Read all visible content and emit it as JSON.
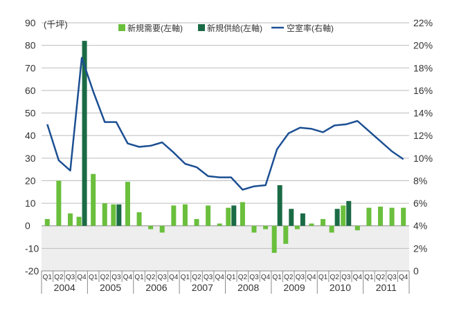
{
  "chart_data": {
    "type": "bar",
    "unit_left": "(千坪)",
    "legend": [
      {
        "name": "新規需要(左軸)",
        "kind": "bar",
        "color": "#6abf3c"
      },
      {
        "name": "新規供給(左軸)",
        "kind": "bar",
        "color": "#1a6b45"
      },
      {
        "name": "空室率(右軸)",
        "kind": "line",
        "color": "#1b4f93"
      }
    ],
    "legend_position": "top",
    "shaded_negative_region_color": "#eeeeee",
    "left_axis": {
      "min": -20,
      "max": 90,
      "ticks": [
        "90",
        "80",
        "70",
        "60",
        "50",
        "40",
        "30",
        "20",
        "10",
        "0",
        "-10",
        "-20"
      ]
    },
    "right_axis": {
      "min": 0,
      "max": 22,
      "ticks": [
        "22%",
        "20%",
        "18%",
        "16%",
        "14%",
        "12%",
        "10%",
        "8%",
        "6%",
        "4%",
        "2%",
        "0"
      ]
    },
    "quarters": [
      "Q1",
      "Q2",
      "Q3",
      "Q4",
      "Q1",
      "Q2",
      "Q3",
      "Q4",
      "Q1",
      "Q2",
      "Q3",
      "Q4",
      "Q1",
      "Q2",
      "Q3",
      "Q4",
      "Q1",
      "Q2",
      "Q3",
      "Q4",
      "Q1",
      "Q2",
      "Q3",
      "Q4",
      "Q1",
      "Q2",
      "Q3",
      "Q4",
      "Q1",
      "Q2",
      "Q3",
      "Q4"
    ],
    "years": [
      "2004",
      "2005",
      "2006",
      "2007",
      "2008",
      "2009",
      "2010",
      "2011"
    ],
    "series": [
      {
        "name": "新規需要(左軸)",
        "values": [
          3,
          20,
          5.5,
          4,
          23,
          10,
          9.5,
          19.5,
          6,
          -1.5,
          -3,
          9,
          9.5,
          3,
          9,
          1,
          8,
          10.5,
          -3,
          -1.5,
          -12,
          -8,
          -1.5,
          1,
          3,
          -3,
          9,
          -2,
          8,
          8.5,
          8,
          8
        ]
      },
      {
        "name": "新規供給(左軸)",
        "values": [
          0,
          0,
          0,
          82,
          0,
          0,
          9.5,
          0,
          0,
          0,
          0,
          0,
          0,
          0,
          0,
          0,
          9,
          0,
          0,
          0,
          18,
          7.5,
          5.5,
          0,
          0,
          7.5,
          11,
          0,
          0,
          0,
          0,
          0
        ]
      },
      {
        "name": "空室率(右軸)",
        "values": [
          13.0,
          9.8,
          8.9,
          18.9,
          15.9,
          13.2,
          13.2,
          11.3,
          11.0,
          11.1,
          11.4,
          10.5,
          9.5,
          9.2,
          8.4,
          8.3,
          8.3,
          7.2,
          7.5,
          7.6,
          10.8,
          12.2,
          12.7,
          12.6,
          12.3,
          12.9,
          13.0,
          13.3,
          12.4,
          11.5,
          10.6,
          9.9
        ]
      }
    ]
  }
}
